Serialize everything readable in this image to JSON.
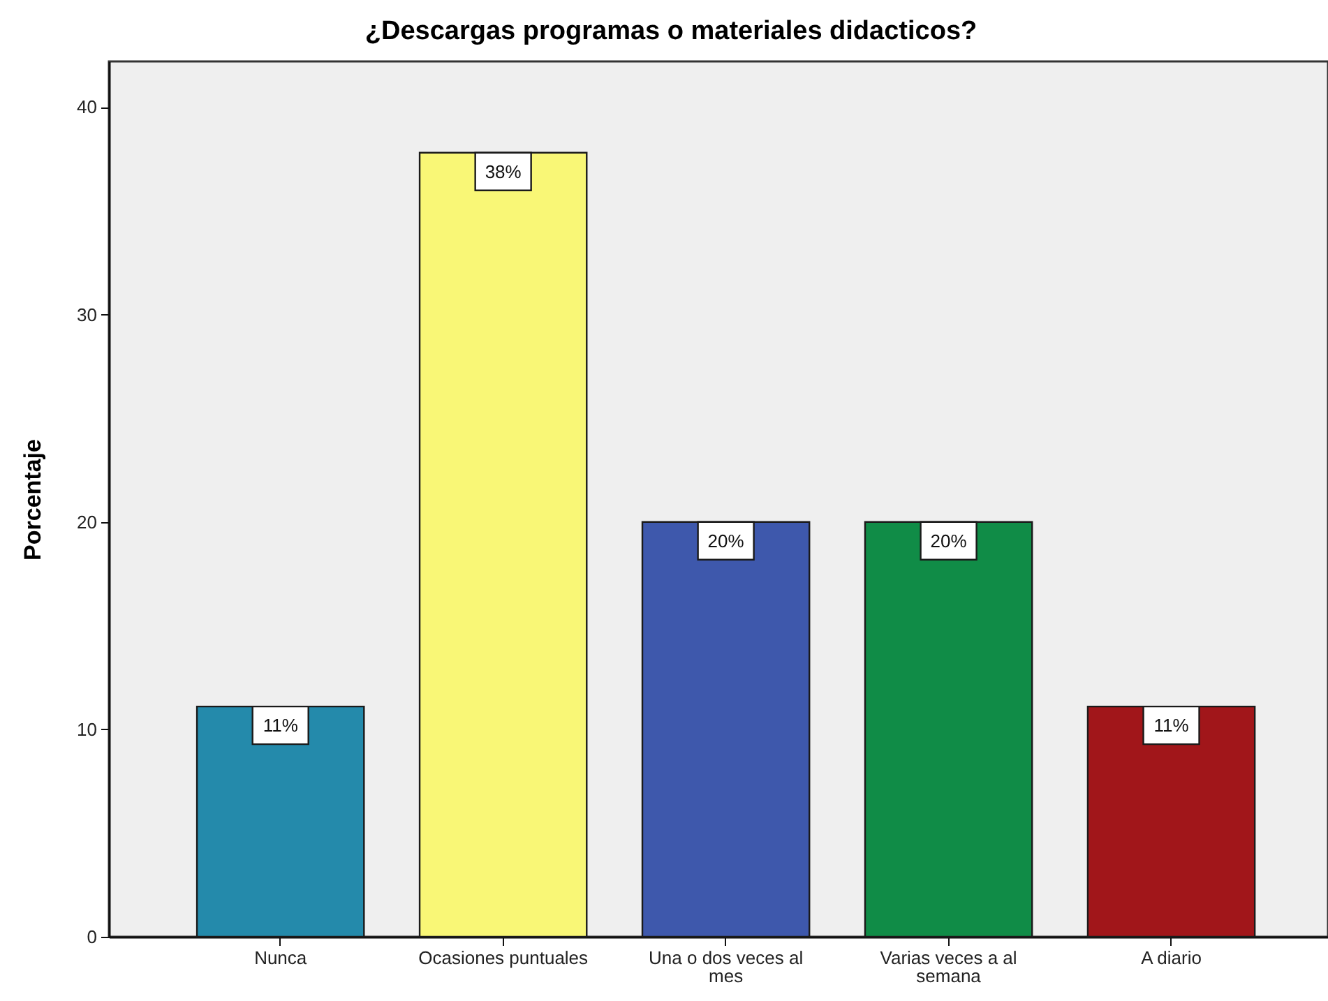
{
  "chart_data": {
    "type": "bar",
    "title": "¿Descargas programas o materiales didacticos?",
    "ylabel": "Porcentaje",
    "categories": [
      "Nunca",
      "Ocasiones puntuales",
      "Una o dos veces al mes",
      "Varias veces a al semana",
      "A diario"
    ],
    "values": [
      11.1,
      37.8,
      20.0,
      20.0,
      11.1
    ],
    "colors": [
      "#248aab",
      "#f9f776",
      "#3e58ac",
      "#108c47",
      "#a1161a"
    ],
    "value_labels": [
      "11%",
      "38%",
      "20%",
      "20%",
      "11%"
    ],
    "ylim": [
      0,
      42.2
    ],
    "yticks": [
      0,
      10,
      20,
      30,
      40
    ]
  }
}
